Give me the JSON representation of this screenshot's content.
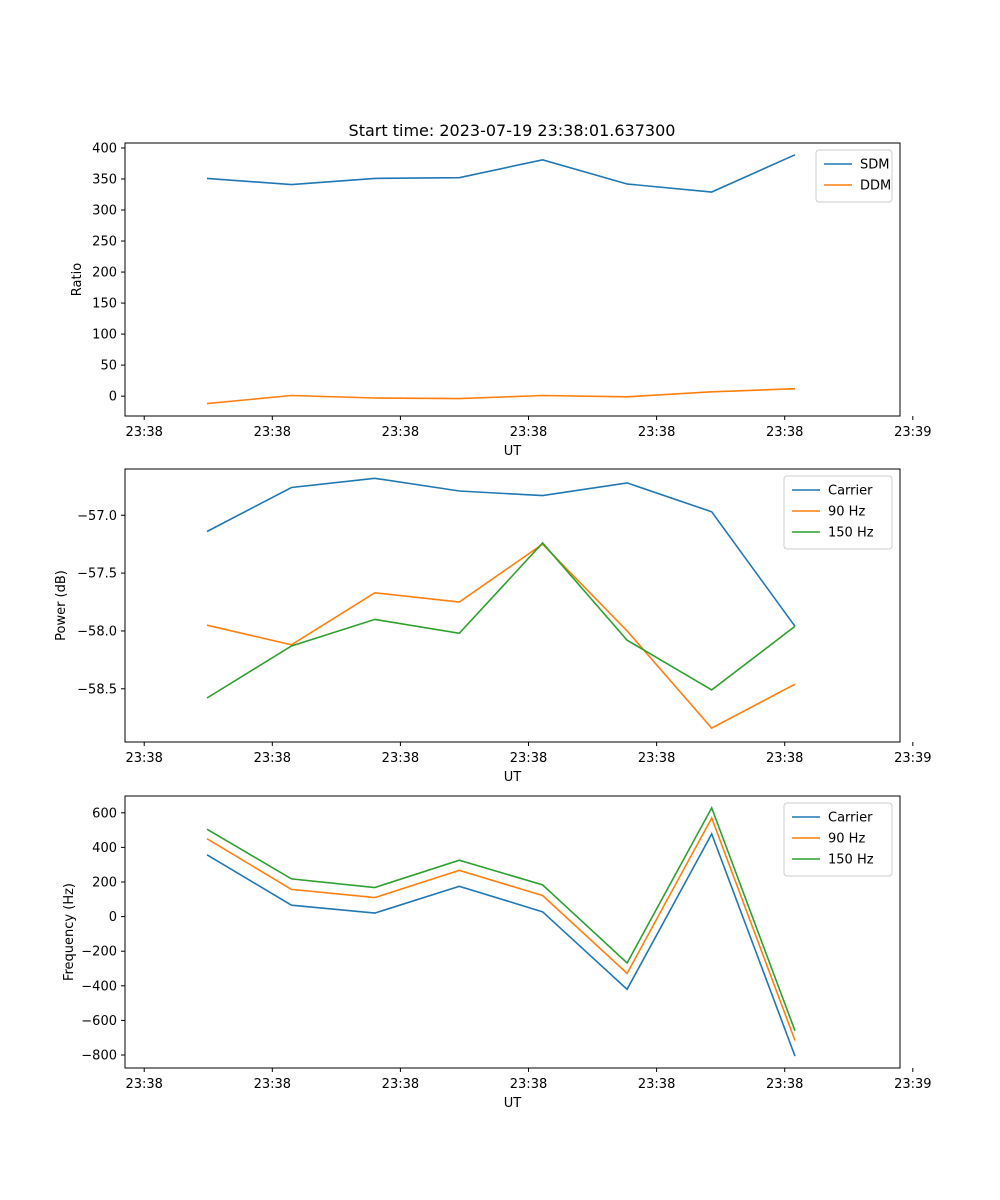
{
  "title": "Start time: 2023-07-19 23:38:01.637300",
  "colors": {
    "blue": "#1f77b4",
    "orange": "#ff7f0e",
    "green": "#2ca02c"
  },
  "chart_data": [
    {
      "type": "line",
      "xlabel": "UT",
      "ylabel": "Ratio",
      "x_ticks": [
        "23:38",
        "23:38",
        "23:38",
        "23:38",
        "23:38",
        "23:38",
        "23:39"
      ],
      "x_tick_values": [
        0,
        1,
        2,
        3,
        4,
        5,
        6
      ],
      "xlim": [
        -0.15,
        5.9
      ],
      "x": [
        0.49,
        1.15,
        1.8,
        2.46,
        3.11,
        3.77,
        4.43,
        5.08
      ],
      "ylim": [
        -32,
        408
      ],
      "y_ticks": [
        "0",
        "50",
        "100",
        "150",
        "200",
        "250",
        "300",
        "350",
        "400"
      ],
      "y_tick_values": [
        0,
        50,
        100,
        150,
        200,
        250,
        300,
        350,
        400
      ],
      "legend": "top-right",
      "series": [
        {
          "name": "SDM",
          "color": "#1f77b4",
          "values": [
            351,
            341,
            351,
            352,
            381,
            342,
            329,
            389
          ]
        },
        {
          "name": "DDM",
          "color": "#ff7f0e",
          "values": [
            -12,
            1,
            -3,
            -4,
            1,
            -1,
            7,
            12
          ]
        }
      ]
    },
    {
      "type": "line",
      "xlabel": "UT",
      "ylabel": "Power (dB)",
      "x_ticks": [
        "23:38",
        "23:38",
        "23:38",
        "23:38",
        "23:38",
        "23:38",
        "23:39"
      ],
      "x_tick_values": [
        0,
        1,
        2,
        3,
        4,
        5,
        6
      ],
      "xlim": [
        -0.15,
        5.9
      ],
      "x": [
        0.49,
        1.15,
        1.8,
        2.46,
        3.11,
        3.77,
        4.43,
        5.08
      ],
      "ylim": [
        -58.96,
        -56.6
      ],
      "y_ticks": [
        "−57.0",
        "−57.5",
        "−58.0",
        "−58.5"
      ],
      "y_tick_values": [
        -57.0,
        -57.5,
        -58.0,
        -58.5
      ],
      "legend": "top-right",
      "series": [
        {
          "name": "Carrier",
          "color": "#1f77b4",
          "values": [
            -57.14,
            -56.76,
            -56.68,
            -56.79,
            -56.83,
            -56.72,
            -56.97,
            -57.96
          ]
        },
        {
          "name": "90 Hz",
          "color": "#ff7f0e",
          "values": [
            -57.95,
            -58.12,
            -57.67,
            -57.75,
            -57.25,
            -58.0,
            -58.84,
            -58.46
          ]
        },
        {
          "name": "150 Hz",
          "color": "#2ca02c",
          "values": [
            -58.58,
            -58.13,
            -57.9,
            -58.02,
            -57.24,
            -58.08,
            -58.51,
            -57.96
          ]
        }
      ]
    },
    {
      "type": "line",
      "xlabel": "UT",
      "ylabel": "Frequency (Hz)",
      "x_ticks": [
        "23:38",
        "23:38",
        "23:38",
        "23:38",
        "23:38",
        "23:38",
        "23:39"
      ],
      "x_tick_values": [
        0,
        1,
        2,
        3,
        4,
        5,
        6
      ],
      "xlim": [
        -0.15,
        5.9
      ],
      "x": [
        0.49,
        1.15,
        1.8,
        2.46,
        3.11,
        3.77,
        4.43,
        5.08
      ],
      "ylim": [
        -875,
        697
      ],
      "y_ticks": [
        "600",
        "400",
        "200",
        "0",
        "−200",
        "−400",
        "−600",
        "−800"
      ],
      "y_tick_values": [
        600,
        400,
        200,
        0,
        -200,
        -400,
        -600,
        -800
      ],
      "legend": "top-right",
      "series": [
        {
          "name": "Carrier",
          "color": "#1f77b4",
          "values": [
            357,
            66,
            20,
            175,
            28,
            -420,
            478,
            -806
          ]
        },
        {
          "name": "90 Hz",
          "color": "#ff7f0e",
          "values": [
            450,
            157,
            110,
            267,
            122,
            -328,
            570,
            -716
          ]
        },
        {
          "name": "150 Hz",
          "color": "#2ca02c",
          "values": [
            505,
            218,
            168,
            326,
            183,
            -268,
            628,
            -660
          ]
        }
      ]
    }
  ]
}
